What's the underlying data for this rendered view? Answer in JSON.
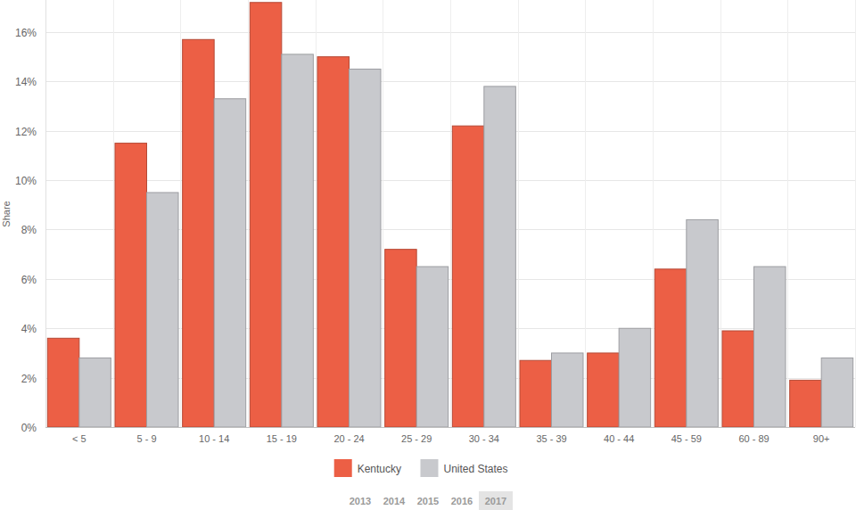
{
  "chart_data": {
    "type": "bar",
    "y_label": "Share",
    "categories": [
      "< 5",
      "5 - 9",
      "10 - 14",
      "15 - 19",
      "20 - 24",
      "25 - 29",
      "30 - 34",
      "35 - 39",
      "40 - 44",
      "45 - 59",
      "60 - 89",
      "90+"
    ],
    "series": [
      {
        "name": "Kentucky",
        "color": "#ec5f45",
        "values": [
          3.6,
          11.5,
          15.7,
          17.2,
          15.0,
          7.2,
          12.2,
          2.7,
          3.0,
          6.4,
          3.9,
          1.9
        ]
      },
      {
        "name": "United States",
        "color": "#c8c9cd",
        "values": [
          2.8,
          9.5,
          13.3,
          15.1,
          14.5,
          6.5,
          13.8,
          3.0,
          4.0,
          8.4,
          6.5,
          2.8
        ]
      }
    ],
    "ylim": [
      0,
      17.3
    ],
    "yticks": [
      {
        "value": 0,
        "label": "0%"
      },
      {
        "value": 2,
        "label": "2%"
      },
      {
        "value": 4,
        "label": "4%"
      },
      {
        "value": 6,
        "label": "6%"
      },
      {
        "value": 8,
        "label": "8%"
      },
      {
        "value": 10,
        "label": "10%"
      },
      {
        "value": 12,
        "label": "12%"
      },
      {
        "value": 14,
        "label": "14%"
      },
      {
        "value": 16,
        "label": "16%"
      }
    ],
    "grid": true,
    "legend": "bottom",
    "annotations": [
      "2013",
      "2014",
      "2015",
      "2016",
      "2017"
    ]
  }
}
